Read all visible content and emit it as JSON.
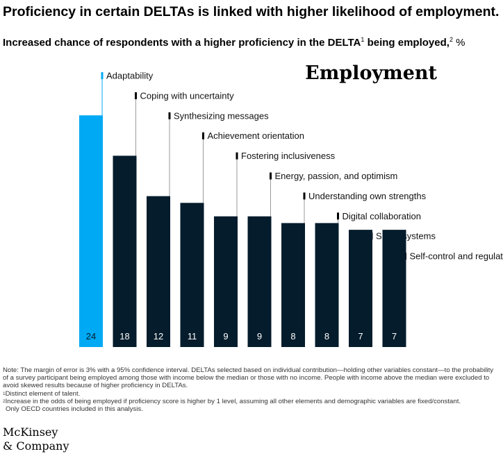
{
  "header": {
    "title": "Proficiency in certain DELTAs is linked with higher likelihood of employment.",
    "subtitle_main": "Increased chance of respondents with a higher proficiency in the DELTA",
    "subtitle_sup1": "1",
    "subtitle_mid": " being employed,",
    "subtitle_sup2": "2",
    "subtitle_unit": " %"
  },
  "chart_data": {
    "type": "bar",
    "title": "Employment",
    "categories": [
      "Adaptability",
      "Coping with uncertainty",
      "Synthesizing messages",
      "Achievement orientation",
      "Fostering inclusiveness",
      "Energy, passion, and optimism",
      "Understanding own strengths",
      "Digital collaboration",
      "Smart systems",
      "Self-control and regulation"
    ],
    "values": [
      24,
      18,
      12,
      11,
      9,
      9,
      8,
      8,
      7,
      7
    ],
    "ylim": [
      0,
      24
    ],
    "highlight_index": 0,
    "colors": {
      "highlight": "#00a9f4",
      "bar": "#051c2c",
      "leader_line": "#9a9a9a",
      "label_value_on_highlight": "#051c2c",
      "label_value": "#ffffff"
    },
    "grid": false,
    "legend": "none"
  },
  "notes": {
    "note": "Note: The margin of error is 3% with a 95% confidence interval. DELTAs selected based on individual contribution—holding other variables constant—to the probability of a survey participant being employed among those with income below the median or those with no income. People with income above the median were excluded to avoid skewed results because of higher proficiency in DELTAs.",
    "fn1_marker": "1",
    "fn1": "Distinct element of talent.",
    "fn2_marker": "2",
    "fn2": "Increase in the odds of being employed if proficiency score is higher by 1 level, assuming all other elements and demographic variables are fixed/constant.",
    "fn2_cont": "Only OECD countries included in this analysis."
  },
  "logo": {
    "line1": "McKinsey",
    "line2": "& Company"
  }
}
